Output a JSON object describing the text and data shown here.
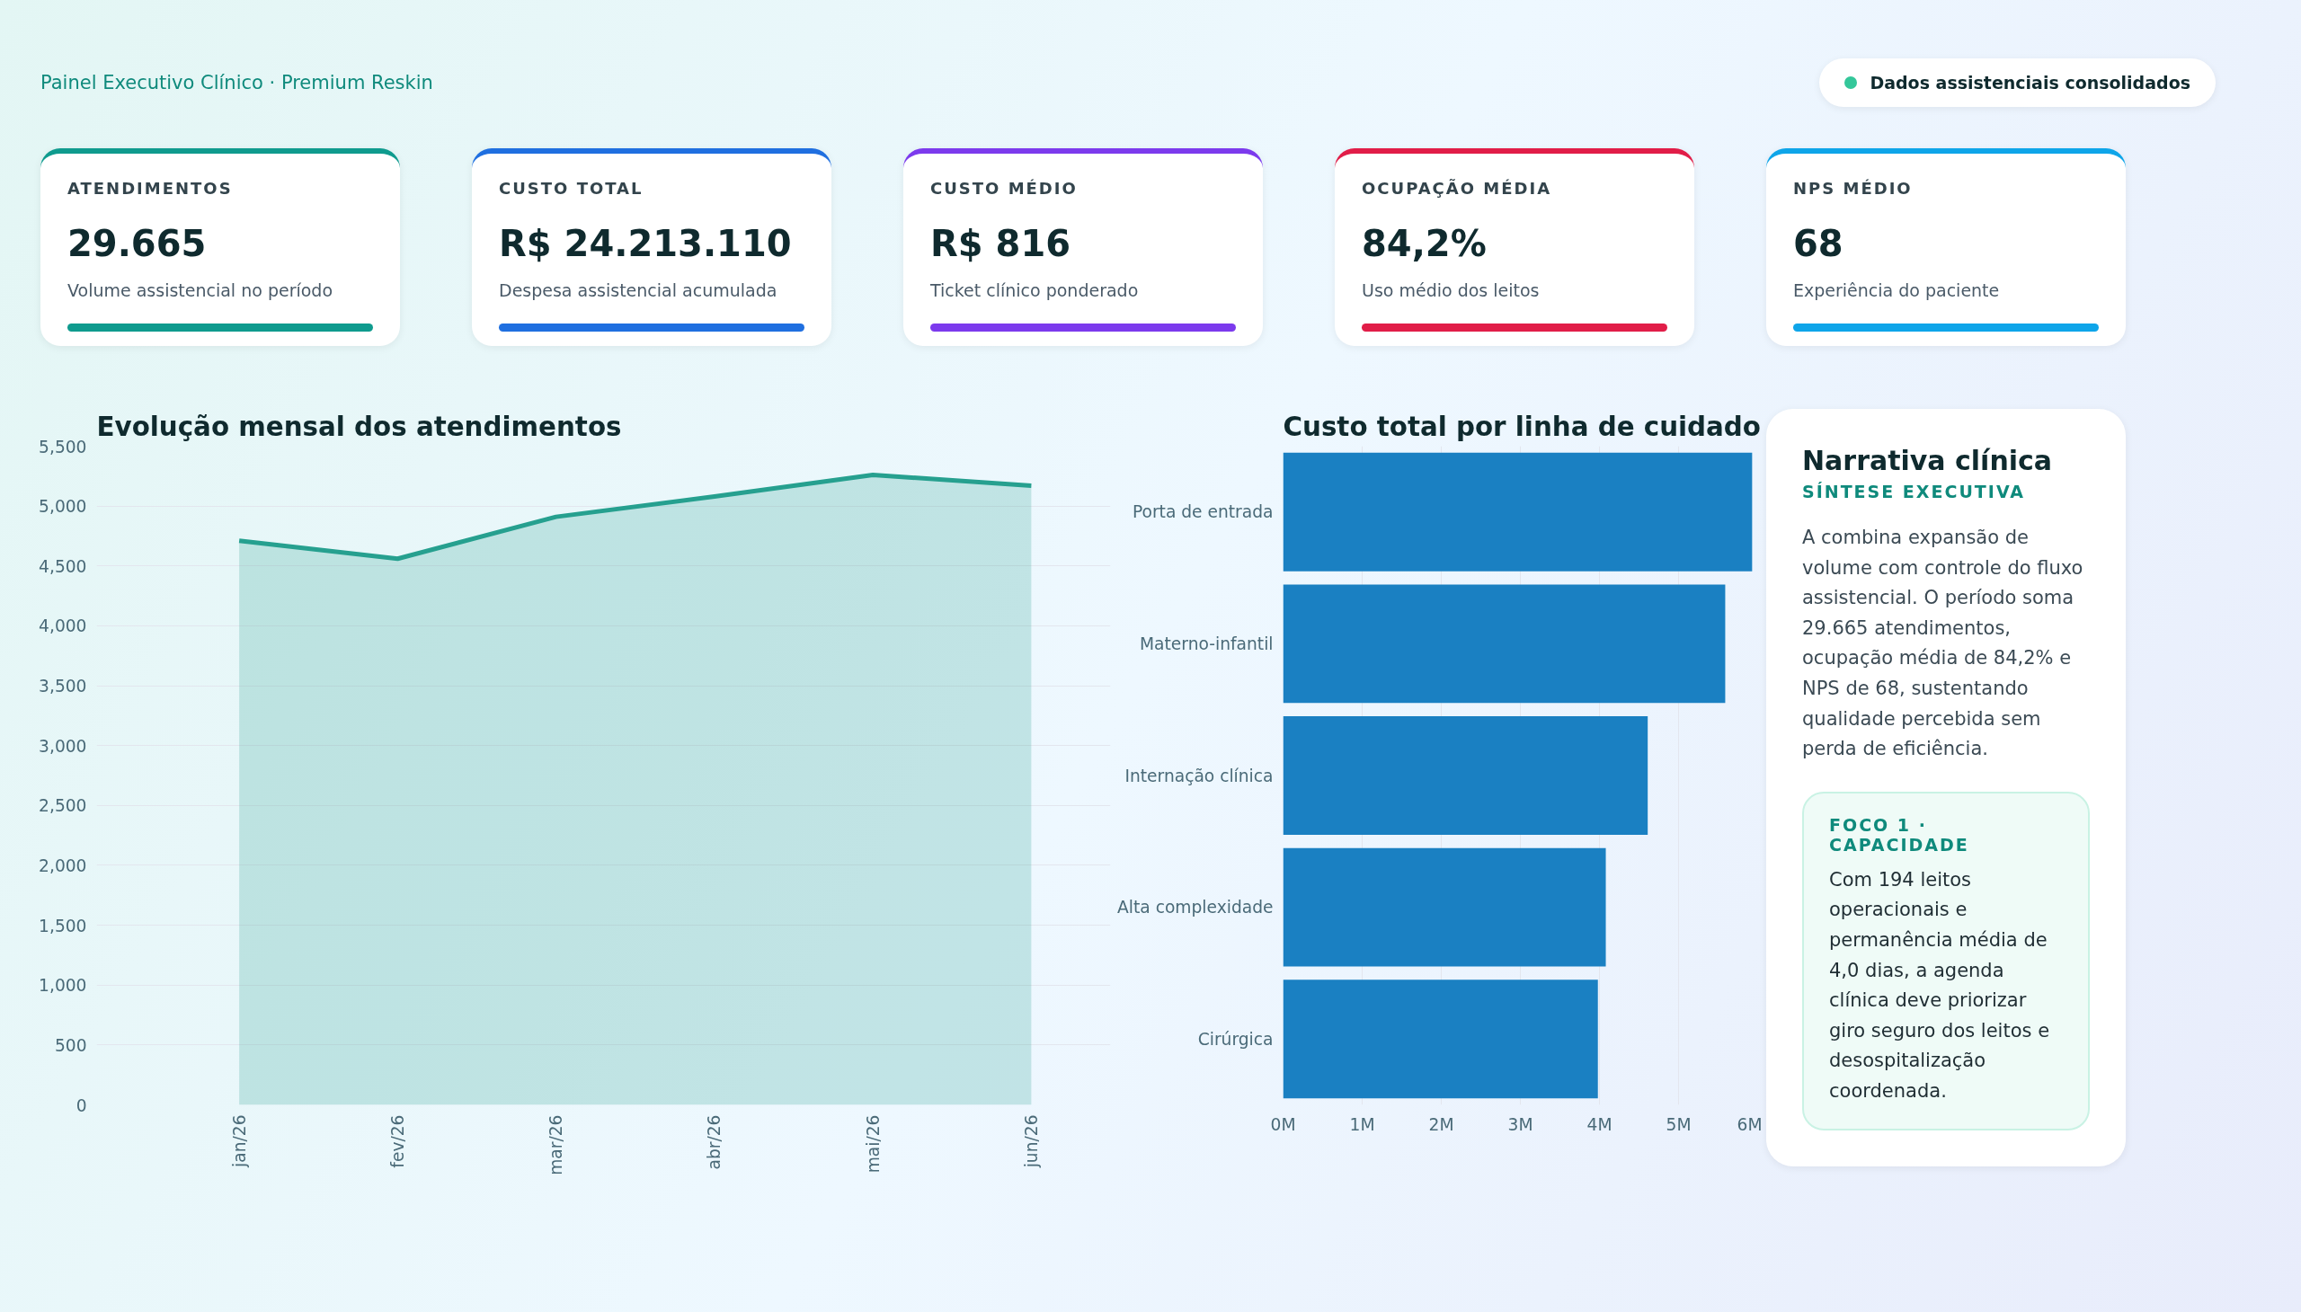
{
  "chart_data": [
    {
      "type": "other",
      "title": "Painel Executivo Clínico · Premium Reskin",
      "annotations": [
        "Dados assistenciais consolidados"
      ]
    },
    {
      "type": "other",
      "title": "ATENDIMENTOS",
      "annotations": [
        "29.665",
        "Volume assistencial no período"
      ]
    },
    {
      "type": "other",
      "title": "CUSTO TOTAL",
      "annotations": [
        "R$ 24.213.110",
        "Despesa assistencial acumulada"
      ]
    },
    {
      "type": "other",
      "title": "CUSTO MÉDIO",
      "annotations": [
        "R$ 816",
        "Ticket clínico ponderado"
      ]
    },
    {
      "type": "other",
      "title": "OCUPAÇÃO MÉDIA",
      "annotations": [
        "84,2%",
        "Uso médio dos leitos"
      ]
    },
    {
      "type": "other",
      "title": "NPS MÉDIO",
      "annotations": [
        "68",
        "Experiência do paciente"
      ]
    },
    {
      "type": "area",
      "title": "Evolução mensal dos atendimentos",
      "categories": [
        "jan/26",
        "fev/26",
        "mar/26",
        "abr/26",
        "mai/26",
        "jun/26"
      ],
      "series": [
        {
          "color": "#26a08f",
          "values": [
            4710,
            4560,
            4910,
            5080,
            5260,
            5170
          ]
        }
      ],
      "ylim": [
        0,
        5500
      ],
      "yticks": [
        0,
        500,
        {
          "value": 1000,
          "label": "1,000"
        },
        {
          "value": 1500,
          "label": "1,500"
        },
        {
          "value": 2000,
          "label": "2,000"
        },
        {
          "value": 2500,
          "label": "2,500"
        },
        {
          "value": 3000,
          "label": "3,000"
        },
        {
          "value": 3500,
          "label": "3,500"
        },
        {
          "value": 4000,
          "label": "4,000"
        },
        {
          "value": 4500,
          "label": "4,500"
        },
        {
          "value": 5000,
          "label": "5,000"
        },
        {
          "value": 5500,
          "label": "5,500"
        }
      ],
      "grid": "y"
    },
    {
      "type": "bar",
      "orientation": "horizontal",
      "title": "Custo total por linha de cuidado",
      "categories": [
        "Porta de entrada",
        "Materno-infantil",
        "Internação clínica",
        "Alta complexidade",
        "Cirúrgica"
      ],
      "series": [
        {
          "color": "#1a80c2",
          "values": [
            5930000,
            5590000,
            4610000,
            4080000,
            3980000
          ]
        }
      ],
      "xlim": [
        0,
        6000000
      ],
      "xticks": [
        {
          "value": 0,
          "label": "0M"
        },
        {
          "value": 1000000,
          "label": "1M"
        },
        {
          "value": 2000000,
          "label": "2M"
        },
        {
          "value": 3000000,
          "label": "3M"
        },
        {
          "value": 4000000,
          "label": "4M"
        },
        {
          "value": 5000000,
          "label": "5M"
        },
        {
          "value": 6000000,
          "label": "6M"
        }
      ],
      "grid": "x"
    },
    {
      "type": "other",
      "title": "Narrativa clínica",
      "subtitle": "SÍNTESE EXECUTIVA",
      "annotations": [
        "A combina expansão de volume com controle do fluxo assistencial. O período soma 29.665 atendimentos, ocupação média de 84,2% e NPS de 68, sustentando qualidade percebida sem perda de eficiência.",
        "FOCO 1 · CAPACIDADE",
        "Com 194 leitos operacionais e permanência média de 4,0 dias, a agenda clínica deve priorizar giro seguro dos leitos e desospitalização coordenada."
      ]
    }
  ]
}
